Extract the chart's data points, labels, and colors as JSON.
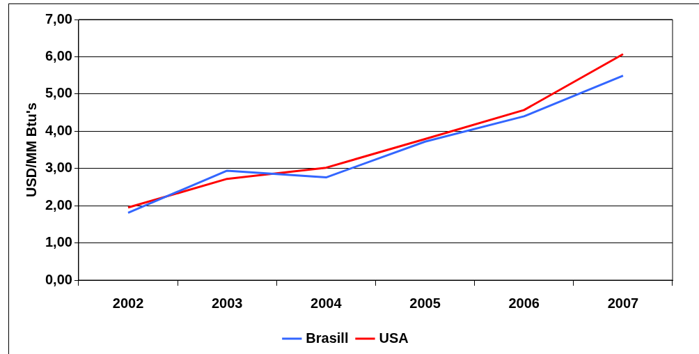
{
  "chart_data": {
    "type": "line",
    "ylabel": "USD/MM Btu's",
    "categories": [
      "2002",
      "2003",
      "2004",
      "2005",
      "2006",
      "2007"
    ],
    "series": [
      {
        "name": "Brasill",
        "color": "#3366ff",
        "values": [
          1.81,
          2.94,
          2.76,
          3.72,
          4.4,
          5.49
        ]
      },
      {
        "name": "USA",
        "color": "#ff0000",
        "values": [
          1.95,
          2.72,
          3.02,
          3.79,
          4.57,
          6.07
        ]
      }
    ],
    "ylim": [
      0,
      7
    ],
    "yticks": [
      {
        "value": 0,
        "label": "0,00"
      },
      {
        "value": 1,
        "label": "1,00"
      },
      {
        "value": 2,
        "label": "2,00"
      },
      {
        "value": 3,
        "label": "3,00"
      },
      {
        "value": 4,
        "label": "4,00"
      },
      {
        "value": 5,
        "label": "5,00"
      },
      {
        "value": 6,
        "label": "6,00"
      },
      {
        "value": 7,
        "label": "7,00"
      }
    ],
    "grid": "y",
    "legend": "bottom",
    "marker": "none",
    "line_style": "solid"
  }
}
